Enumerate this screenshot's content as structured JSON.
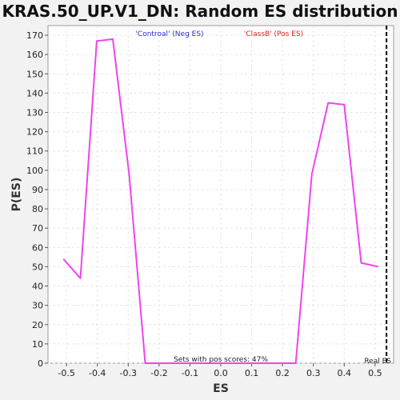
{
  "chart_data": {
    "type": "line",
    "title": "KRAS.50_UP.V1_DN: Random ES distribution",
    "xlabel": "ES",
    "ylabel": "P(ES)",
    "xlim": [
      -0.56,
      0.56
    ],
    "ylim": [
      0,
      175
    ],
    "x_ticks": [
      -0.5,
      -0.4,
      -0.3,
      -0.2,
      -0.1,
      0.0,
      0.1,
      0.2,
      0.3,
      0.4,
      0.5
    ],
    "x_tick_labels": [
      "-0.5",
      "-0.4",
      "-0.3",
      "-0.2",
      "-0.1",
      "0.0",
      "0.1",
      "0.2",
      "0.3",
      "0.4",
      "0.5"
    ],
    "y_ticks": [
      0,
      10,
      20,
      30,
      40,
      50,
      60,
      70,
      80,
      90,
      100,
      110,
      120,
      130,
      140,
      150,
      160,
      170
    ],
    "grid": true,
    "series": [
      {
        "color": "#ee44ee",
        "x": [
          -0.51,
          -0.455,
          -0.402,
          -0.35,
          -0.297,
          -0.245,
          -0.191,
          -0.14,
          -0.09,
          -0.037,
          0.015,
          0.067,
          0.12,
          0.172,
          0.224,
          0.243,
          0.295,
          0.348,
          0.4,
          0.455,
          0.51
        ],
        "values": [
          54,
          44,
          167,
          168,
          98,
          0,
          0,
          0,
          0,
          0,
          0,
          0,
          0,
          0,
          0,
          0,
          98,
          135,
          134,
          52,
          50
        ]
      }
    ],
    "legend": {
      "placement": "top",
      "entries": [
        {
          "label": "'Controal' (Neg ES)",
          "color": "#2b2bd6"
        },
        {
          "label": "'ClassB' (Pos ES)",
          "color": "#e02020"
        }
      ]
    },
    "annotations": {
      "pos_scores": "Sets with pos scores: 47%",
      "real_es_label": "Real ES",
      "real_es_x": 0.537
    }
  }
}
